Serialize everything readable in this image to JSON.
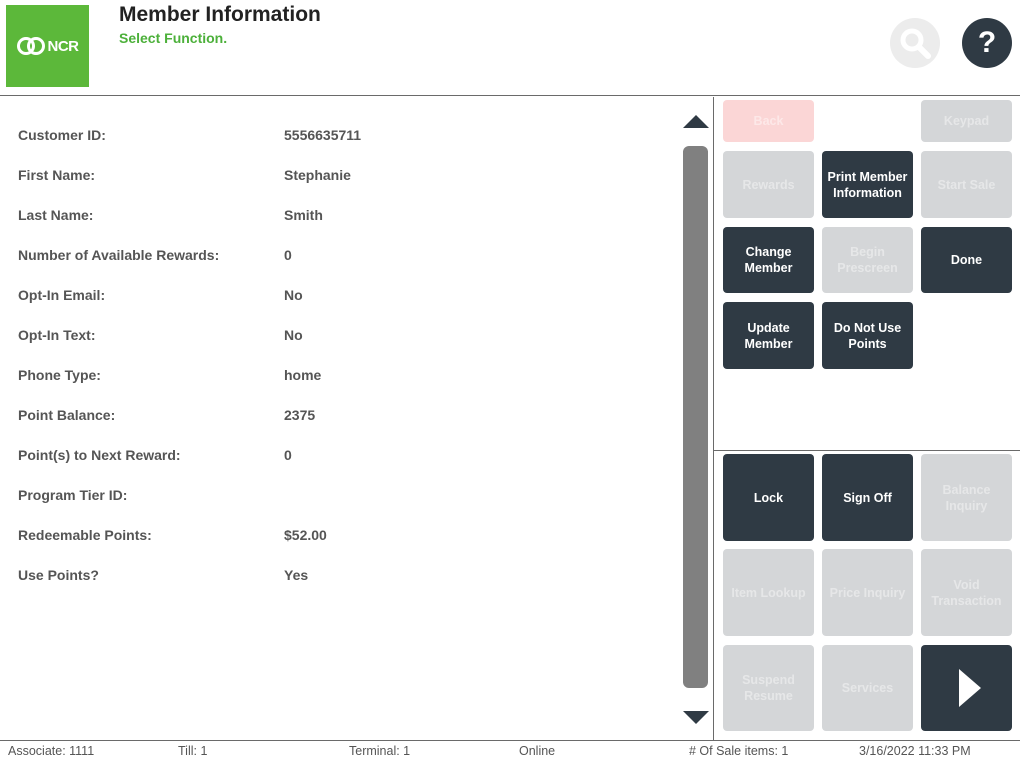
{
  "header": {
    "logo_text": "NCR",
    "title": "Member Information",
    "subtitle": "Select Function.",
    "help_label": "?"
  },
  "member_fields": [
    {
      "label": "Customer ID:",
      "value": "5556635711"
    },
    {
      "label": "First Name:",
      "value": "Stephanie"
    },
    {
      "label": "Last Name:",
      "value": "Smith"
    },
    {
      "label": "Number of Available Rewards:",
      "value": "0"
    },
    {
      "label": "Opt-In Email:",
      "value": "No"
    },
    {
      "label": "Opt-In Text:",
      "value": "No"
    },
    {
      "label": "Phone Type:",
      "value": "home"
    },
    {
      "label": "Point Balance:",
      "value": "2375"
    },
    {
      "label": "Point(s) to Next Reward:",
      "value": "0"
    },
    {
      "label": "Program Tier ID:",
      "value": ""
    },
    {
      "label": "Redeemable Points:",
      "value": "$52.00"
    },
    {
      "label": "Use Points?",
      "value": "Yes"
    }
  ],
  "function_buttons": {
    "back": "Back",
    "keypad": "Keypad",
    "rewards": "Rewards",
    "print_member_info": "Print Member Information",
    "start_sale": "Start Sale",
    "change_member": "Change Member",
    "begin_prescreen": "Begin Prescreen",
    "done": "Done",
    "update_member": "Update Member",
    "do_not_use_points": "Do Not Use Points"
  },
  "system_buttons": {
    "lock": "Lock",
    "sign_off": "Sign Off",
    "balance_inquiry": "Balance Inquiry",
    "item_lookup": "Item Lookup",
    "price_inquiry": "Price Inquiry",
    "void_transaction": "Void Transaction",
    "suspend_resume": "Suspend Resume",
    "services": "Services"
  },
  "footer": {
    "associate": "Associate: 1111",
    "till": "Till: 1",
    "terminal": "Terminal: 1",
    "status": "Online",
    "sale_items": "# Of Sale items: 1",
    "datetime": "3/16/2022 11:33 PM"
  },
  "colors": {
    "brand_green": "#5cb83a",
    "subtitle_green": "#4cb03a",
    "button_dark": "#2f3a44",
    "button_disabled": "#d4d6d8",
    "button_back": "#fbd6d6"
  },
  "icons": {
    "search": "search-icon",
    "help": "help-icon",
    "scroll_up": "triangle-up-icon",
    "scroll_down": "triangle-down-icon",
    "next": "triangle-right-icon"
  }
}
